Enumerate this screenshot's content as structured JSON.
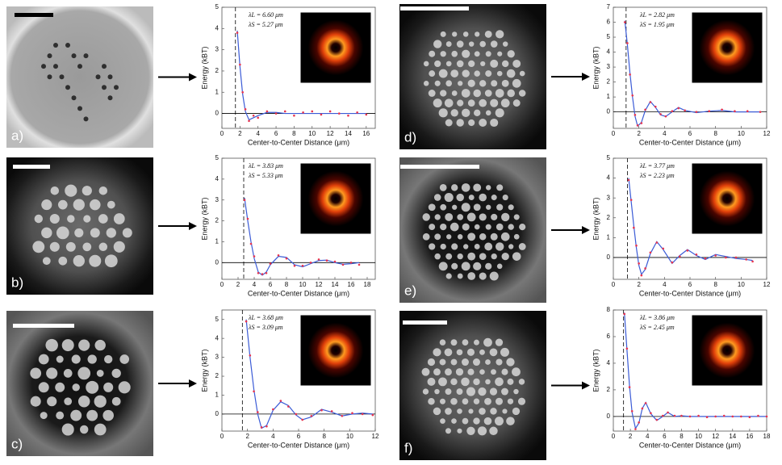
{
  "panels": [
    {
      "label": "a)"
    },
    {
      "label": "b)"
    },
    {
      "label": "c)"
    },
    {
      "label": "d)"
    },
    {
      "label": "e)"
    },
    {
      "label": "f)"
    }
  ],
  "chart_data": [
    {
      "type": "line",
      "x_label": "Center-to-Center Distance (μm)",
      "y_label": "Energy (kBT)",
      "annotations": [
        "λL = 6.60 μm",
        "λS = 5.27 μm"
      ],
      "cutoff": 1.5,
      "xlim": [
        0,
        17
      ],
      "xticks": [
        0,
        2,
        4,
        6,
        8,
        10,
        12,
        14,
        16
      ],
      "ylim": [
        -0.7,
        5
      ],
      "yticks": [
        0,
        1,
        2,
        3,
        4,
        5
      ],
      "x": [
        1.7,
        2.0,
        2.3,
        2.6,
        3.0,
        3.5,
        4,
        5,
        6,
        7,
        8,
        9,
        10,
        11,
        12,
        13,
        14,
        15,
        16
      ],
      "series": [
        {
          "style": "line",
          "color": "#3b5bd6",
          "values": [
            3.9,
            2.2,
            0.9,
            0.1,
            -0.3,
            -0.2,
            -0.1,
            0.05,
            0.05,
            0,
            0,
            0,
            0,
            0,
            0,
            0,
            0,
            0,
            0
          ]
        },
        {
          "style": "points",
          "color": "#e8344e",
          "values": [
            3.8,
            2.3,
            1.0,
            0.2,
            -0.35,
            -0.1,
            -0.2,
            0.1,
            0.0,
            0.1,
            -0.1,
            0.05,
            0.1,
            -0.05,
            0.1,
            0.0,
            -0.1,
            0.05,
            -0.05
          ]
        }
      ]
    },
    {
      "type": "line",
      "x_label": "Center-to-Center Distance (μm)",
      "y_label": "Energy (kBT)",
      "annotations": [
        "λL = 3.83 μm",
        "λS = 5.33 μm"
      ],
      "cutoff": 2.7,
      "xlim": [
        0,
        19
      ],
      "xticks": [
        0,
        2,
        4,
        6,
        8,
        10,
        12,
        14,
        16,
        18
      ],
      "ylim": [
        -0.8,
        5
      ],
      "yticks": [
        0,
        1,
        2,
        3,
        4,
        5
      ],
      "x": [
        2.8,
        3.2,
        3.6,
        4.0,
        4.5,
        5,
        5.5,
        6,
        7,
        8,
        9,
        10,
        11,
        12,
        13,
        14,
        15,
        16,
        17
      ],
      "series": [
        {
          "style": "line",
          "color": "#3b5bd6",
          "values": [
            3.1,
            2.0,
            1.0,
            0.2,
            -0.45,
            -0.6,
            -0.45,
            -0.1,
            0.3,
            0.25,
            -0.1,
            -0.2,
            -0.05,
            0.1,
            0.12,
            0.0,
            -0.08,
            -0.05,
            0
          ]
        },
        {
          "style": "points",
          "color": "#e8344e",
          "values": [
            3.0,
            2.1,
            0.9,
            0.3,
            -0.5,
            -0.55,
            -0.5,
            -0.05,
            0.35,
            0.2,
            -0.15,
            -0.15,
            0.0,
            0.15,
            0.1,
            0.05,
            -0.1,
            0.0,
            -0.1
          ]
        }
      ]
    },
    {
      "type": "line",
      "x_label": "Center-to-Center Distance (μm)",
      "y_label": "Energy (kBT)",
      "annotations": [
        "λL = 3.68 μm",
        "λS = 3.09 μm"
      ],
      "cutoff": 1.6,
      "xlim": [
        0,
        12
      ],
      "xticks": [
        0,
        2,
        4,
        6,
        8,
        10,
        12
      ],
      "ylim": [
        -0.9,
        5.5
      ],
      "yticks": [
        0,
        1,
        2,
        3,
        4,
        5
      ],
      "x": [
        1.9,
        2.2,
        2.5,
        2.8,
        3.1,
        3.5,
        4,
        4.6,
        5.2,
        5.8,
        6.3,
        7,
        7.8,
        8.6,
        9.4,
        10.2,
        11,
        11.8
      ],
      "series": [
        {
          "style": "line",
          "color": "#3b5bd6",
          "values": [
            5.0,
            3.0,
            1.3,
            0.0,
            -0.75,
            -0.6,
            0.2,
            0.65,
            0.45,
            -0.05,
            -0.3,
            -0.15,
            0.25,
            0.1,
            -0.1,
            0.0,
            0.05,
            0.0
          ]
        },
        {
          "style": "points",
          "color": "#e8344e",
          "values": [
            4.9,
            3.1,
            1.2,
            0.1,
            -0.7,
            -0.65,
            0.25,
            0.7,
            0.4,
            0.0,
            -0.3,
            -0.1,
            0.2,
            0.15,
            -0.1,
            0.05,
            0.0,
            -0.05
          ]
        }
      ]
    },
    {
      "type": "line",
      "x_label": "Center-to-Center Distance (μm)",
      "y_label": "Energy (kBT)",
      "annotations": [
        "λL = 2.82 μm",
        "λS = 1.95 μm"
      ],
      "cutoff": 1.0,
      "xlim": [
        0,
        12
      ],
      "xticks": [
        0,
        2,
        4,
        6,
        8,
        10,
        12
      ],
      "ylim": [
        -1.1,
        7
      ],
      "yticks": [
        0,
        1,
        2,
        3,
        4,
        5,
        6,
        7
      ],
      "x": [
        0.9,
        1.1,
        1.3,
        1.5,
        1.7,
        1.9,
        2.2,
        2.5,
        2.9,
        3.3,
        3.7,
        4.1,
        4.6,
        5.1,
        5.6,
        6.5,
        7.5,
        8.5,
        9.5,
        10.5,
        11.5
      ],
      "series": [
        {
          "style": "line",
          "color": "#3b5bd6",
          "values": [
            6.1,
            4.5,
            2.6,
            1.0,
            -0.3,
            -0.95,
            -0.7,
            0.1,
            0.7,
            0.3,
            -0.2,
            -0.3,
            0.0,
            0.3,
            0.1,
            -0.05,
            0.05,
            0.1,
            0.0,
            0.0,
            0.0
          ]
        },
        {
          "style": "points",
          "color": "#e8344e",
          "values": [
            6.0,
            4.6,
            2.5,
            1.1,
            -0.2,
            -0.9,
            -0.75,
            0.15,
            0.65,
            0.35,
            -0.15,
            -0.3,
            0.05,
            0.25,
            0.1,
            0.0,
            0.05,
            0.15,
            0.05,
            0.05,
            0.0
          ]
        }
      ]
    },
    {
      "type": "line",
      "x_label": "Center-to-Center Distance (μm)",
      "y_label": "Energy (kBT)",
      "annotations": [
        "λL = 3.77 μm",
        "λS = 2.23 μm"
      ],
      "cutoff": 1.1,
      "xlim": [
        0,
        12
      ],
      "xticks": [
        0,
        2,
        4,
        6,
        8,
        10,
        12
      ],
      "ylim": [
        -1.1,
        5
      ],
      "yticks": [
        0,
        1,
        2,
        3,
        4,
        5
      ],
      "x": [
        1.2,
        1.4,
        1.6,
        1.8,
        2.0,
        2.2,
        2.5,
        2.9,
        3.4,
        3.9,
        4.6,
        5.2,
        5.8,
        6.5,
        7.2,
        8,
        8.8,
        9.6,
        10.4,
        10.9
      ],
      "series": [
        {
          "style": "line",
          "color": "#3b5bd6",
          "values": [
            4.0,
            2.8,
            1.6,
            0.5,
            -0.4,
            -0.85,
            -0.6,
            0.2,
            0.8,
            0.4,
            -0.3,
            0.1,
            0.4,
            0.1,
            -0.1,
            0.15,
            0.05,
            -0.05,
            -0.1,
            -0.15
          ]
        },
        {
          "style": "points",
          "color": "#e8344e",
          "values": [
            3.9,
            2.9,
            1.5,
            0.6,
            -0.3,
            -0.9,
            -0.55,
            0.25,
            0.75,
            0.45,
            -0.25,
            0.05,
            0.35,
            0.15,
            -0.05,
            0.1,
            0.0,
            0.0,
            -0.1,
            -0.2
          ]
        }
      ]
    },
    {
      "type": "line",
      "x_label": "Center-to-Center Distance (μm)",
      "y_label": "Energy (kBT)",
      "annotations": [
        "λL = 3.86 μm",
        "λS = 2.45 μm"
      ],
      "cutoff": 1.2,
      "xlim": [
        0,
        18
      ],
      "xticks": [
        0,
        2,
        4,
        6,
        8,
        10,
        12,
        14,
        16,
        18
      ],
      "ylim": [
        -1.1,
        8
      ],
      "yticks": [
        0,
        2,
        4,
        6,
        8
      ],
      "x": [
        1.3,
        1.6,
        1.9,
        2.2,
        2.6,
        3.0,
        3.4,
        3.8,
        4.4,
        5.1,
        5.8,
        6.4,
        7.2,
        8,
        9,
        10,
        11,
        12,
        13,
        14,
        15,
        16,
        17,
        18
      ],
      "series": [
        {
          "style": "line",
          "color": "#3b5bd6",
          "values": [
            7.8,
            5.0,
            2.3,
            0.3,
            -0.9,
            -0.5,
            0.6,
            1.05,
            0.2,
            -0.3,
            0.0,
            0.3,
            0.0,
            0.05,
            0,
            0,
            0,
            0,
            0,
            0,
            0,
            0,
            0,
            0
          ]
        },
        {
          "style": "points",
          "color": "#e8344e",
          "values": [
            7.7,
            5.1,
            2.2,
            0.4,
            -0.95,
            -0.45,
            0.6,
            1.0,
            0.25,
            -0.25,
            0.05,
            0.3,
            0.05,
            0.05,
            0.0,
            0.05,
            -0.05,
            0.0,
            0.05,
            0.0,
            0.0,
            -0.05,
            0.05,
            0.0
          ]
        }
      ]
    }
  ]
}
